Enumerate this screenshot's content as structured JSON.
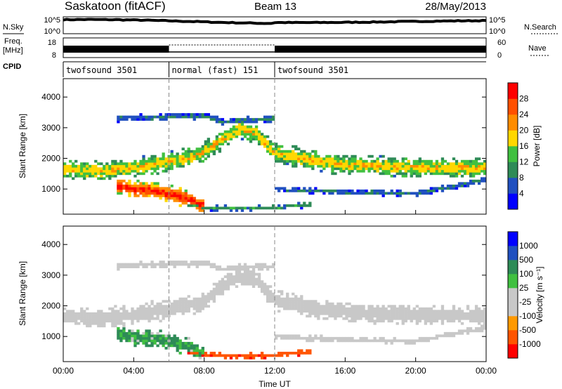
{
  "header": {
    "station": "Saskatoon (fitACF)",
    "beam": "Beam 13",
    "date": "28/May/2013"
  },
  "side_labels": {
    "nsky": "N.Sky",
    "freq_line1": "Freq.",
    "freq_line2": "[MHz]",
    "cpid": "CPID",
    "nsearch": "N.Search",
    "nave": "Nave"
  },
  "strip_ticks": {
    "nsky_left": [
      "10^5",
      "10^0"
    ],
    "nsky_right": [
      "10^5",
      "10^0"
    ],
    "freq_left": [
      "18",
      "8"
    ],
    "nave_right": [
      "60",
      "0"
    ]
  },
  "cpid_segments": [
    {
      "label": "twofsound 3501",
      "start": 0,
      "end": 6
    },
    {
      "label": "normal (fast) 151",
      "start": 6,
      "end": 12
    },
    {
      "label": "twofsound 3501",
      "start": 12,
      "end": 24
    }
  ],
  "colors": {
    "power_scale": [
      "#0000ff",
      "#2050c0",
      "#2e8b57",
      "#40c040",
      "#ffd700",
      "#ff8c00",
      "#ff5000",
      "#ff0000"
    ],
    "velocity_scale": [
      "#ff0000",
      "#ff5500",
      "#ff9900",
      "#c8c8c8",
      "#c8c8c8",
      "#40c040",
      "#2e8b57",
      "#2050c0",
      "#0000ff"
    ]
  },
  "chart_data": [
    {
      "type": "heatmap",
      "panel": "power",
      "xlabel": "",
      "ylabel": "Slant Range [km]",
      "x_ticks": [
        "00:00",
        "04:00",
        "08:00",
        "12:00",
        "16:00",
        "20:00",
        "00:00"
      ],
      "y_ticks": [
        "1000",
        "2000",
        "3000",
        "4000"
      ],
      "xlim": [
        0,
        24
      ],
      "ylim": [
        180,
        4600
      ],
      "colorbar": {
        "label": "Power [dB]",
        "ticks": [
          "4",
          "8",
          "12",
          "16",
          "20",
          "24",
          "28"
        ],
        "range": [
          0,
          32
        ]
      },
      "echo_bands": [
        {
          "name": "main",
          "x": [
            0,
            2,
            4,
            6,
            7,
            8,
            9,
            10,
            11,
            12,
            14,
            16,
            20,
            24
          ],
          "center_km": [
            1650,
            1600,
            1700,
            1900,
            2000,
            2200,
            2600,
            2950,
            2800,
            2200,
            1950,
            1800,
            1700,
            1700
          ],
          "width_km": 700,
          "level_db": 14
        },
        {
          "name": "near",
          "x": [
            3,
            4,
            5,
            6,
            7,
            8
          ],
          "center_km": [
            1100,
            1000,
            950,
            850,
            700,
            450
          ],
          "width_km": 600,
          "level_db": 22
        },
        {
          "name": "low",
          "x": [
            7,
            8,
            10,
            12,
            14
          ],
          "center_km": [
            500,
            400,
            350,
            400,
            500
          ],
          "width_km": 200,
          "level_db": 8
        },
        {
          "name": "upper",
          "x": [
            3,
            8,
            9,
            12
          ],
          "center_km": [
            3300,
            3400,
            3200,
            3300
          ],
          "width_km": 250,
          "level_db": 6
        },
        {
          "name": "far",
          "x": [
            12,
            16,
            20,
            24
          ],
          "center_km": [
            1000,
            900,
            850,
            1300
          ],
          "width_km": 200,
          "level_db": 6
        }
      ]
    },
    {
      "type": "heatmap",
      "panel": "velocity",
      "xlabel": "Time UT",
      "ylabel": "Slant Range [km]",
      "x_ticks": [
        "00:00",
        "04:00",
        "08:00",
        "12:00",
        "16:00",
        "20:00",
        "00:00"
      ],
      "y_ticks": [
        "1000",
        "2000",
        "3000",
        "4000"
      ],
      "xlim": [
        0,
        24
      ],
      "ylim": [
        180,
        4600
      ],
      "colorbar": {
        "label": "Velocity [m s⁻¹]",
        "ticks": [
          "1000",
          "500",
          "100",
          "25",
          "-25",
          "-100",
          "-500",
          "-1000"
        ],
        "range": [
          -1000,
          1000
        ]
      },
      "echo_bands": [
        {
          "name": "main",
          "x": [
            0,
            2,
            4,
            6,
            7,
            8,
            9,
            10,
            11,
            12,
            14,
            16,
            20,
            24
          ],
          "center_km": [
            1650,
            1600,
            1700,
            1900,
            2000,
            2200,
            2600,
            2950,
            2800,
            2200,
            1950,
            1800,
            1700,
            1700
          ],
          "width_km": 700,
          "level_ms": 0
        },
        {
          "name": "near",
          "x": [
            3,
            4,
            5,
            6,
            7,
            8
          ],
          "center_km": [
            1100,
            1000,
            950,
            850,
            700,
            450
          ],
          "width_km": 600,
          "level_ms": 150
        },
        {
          "name": "low",
          "x": [
            7,
            8,
            10,
            12,
            14
          ],
          "center_km": [
            500,
            400,
            350,
            400,
            500
          ],
          "width_km": 200,
          "level_ms": -400
        },
        {
          "name": "upper",
          "x": [
            3,
            8,
            9,
            12
          ],
          "center_km": [
            3300,
            3400,
            3200,
            3300
          ],
          "width_km": 250,
          "level_ms": 0
        },
        {
          "name": "far",
          "x": [
            12,
            16,
            20,
            24
          ],
          "center_km": [
            1000,
            900,
            850,
            1300
          ],
          "width_km": 200,
          "level_ms": 0
        }
      ]
    }
  ]
}
